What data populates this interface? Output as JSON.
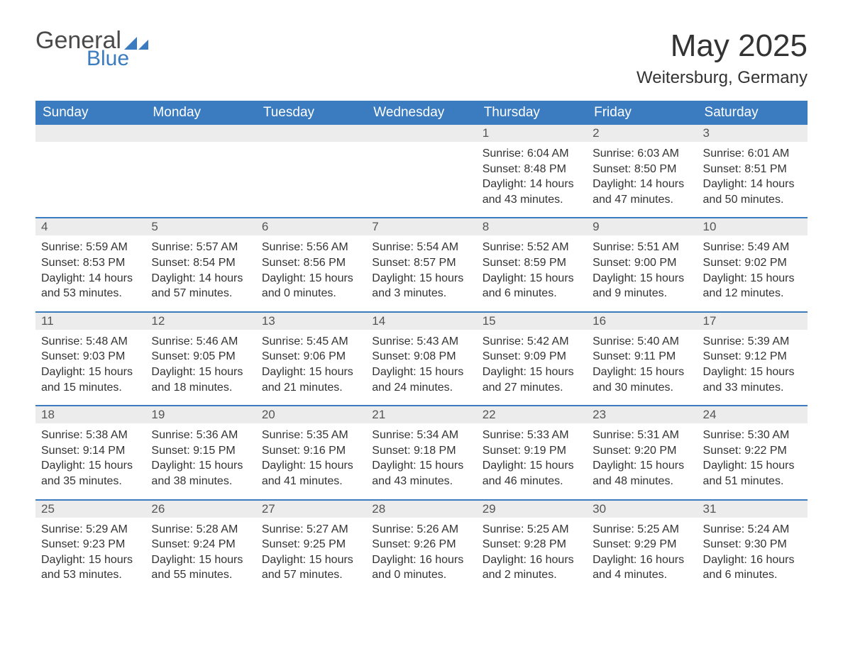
{
  "brand": {
    "word1": "General",
    "word2": "Blue"
  },
  "header": {
    "title": "May 2025",
    "location": "Weitersburg, Germany"
  },
  "colors": {
    "header_bg": "#3b7bbf",
    "header_text": "#ffffff",
    "daynum_bg": "#ececec",
    "row_divider": "#3b7bbf",
    "body_text": "#333333",
    "logo_gray": "#4a4a4a",
    "logo_blue": "#3b7bbf",
    "page_bg": "#ffffff"
  },
  "fonts": {
    "title_size_pt": 33,
    "location_size_pt": 18,
    "header_cell_size_pt": 14,
    "daynum_size_pt": 13,
    "content_size_pt": 12
  },
  "weekdays": [
    "Sunday",
    "Monday",
    "Tuesday",
    "Wednesday",
    "Thursday",
    "Friday",
    "Saturday"
  ],
  "weeks": [
    [
      null,
      null,
      null,
      null,
      {
        "n": "1",
        "sunrise": "6:04 AM",
        "sunset": "8:48 PM",
        "daylight": "14 hours and 43 minutes."
      },
      {
        "n": "2",
        "sunrise": "6:03 AM",
        "sunset": "8:50 PM",
        "daylight": "14 hours and 47 minutes."
      },
      {
        "n": "3",
        "sunrise": "6:01 AM",
        "sunset": "8:51 PM",
        "daylight": "14 hours and 50 minutes."
      }
    ],
    [
      {
        "n": "4",
        "sunrise": "5:59 AM",
        "sunset": "8:53 PM",
        "daylight": "14 hours and 53 minutes."
      },
      {
        "n": "5",
        "sunrise": "5:57 AM",
        "sunset": "8:54 PM",
        "daylight": "14 hours and 57 minutes."
      },
      {
        "n": "6",
        "sunrise": "5:56 AM",
        "sunset": "8:56 PM",
        "daylight": "15 hours and 0 minutes."
      },
      {
        "n": "7",
        "sunrise": "5:54 AM",
        "sunset": "8:57 PM",
        "daylight": "15 hours and 3 minutes."
      },
      {
        "n": "8",
        "sunrise": "5:52 AM",
        "sunset": "8:59 PM",
        "daylight": "15 hours and 6 minutes."
      },
      {
        "n": "9",
        "sunrise": "5:51 AM",
        "sunset": "9:00 PM",
        "daylight": "15 hours and 9 minutes."
      },
      {
        "n": "10",
        "sunrise": "5:49 AM",
        "sunset": "9:02 PM",
        "daylight": "15 hours and 12 minutes."
      }
    ],
    [
      {
        "n": "11",
        "sunrise": "5:48 AM",
        "sunset": "9:03 PM",
        "daylight": "15 hours and 15 minutes."
      },
      {
        "n": "12",
        "sunrise": "5:46 AM",
        "sunset": "9:05 PM",
        "daylight": "15 hours and 18 minutes."
      },
      {
        "n": "13",
        "sunrise": "5:45 AM",
        "sunset": "9:06 PM",
        "daylight": "15 hours and 21 minutes."
      },
      {
        "n": "14",
        "sunrise": "5:43 AM",
        "sunset": "9:08 PM",
        "daylight": "15 hours and 24 minutes."
      },
      {
        "n": "15",
        "sunrise": "5:42 AM",
        "sunset": "9:09 PM",
        "daylight": "15 hours and 27 minutes."
      },
      {
        "n": "16",
        "sunrise": "5:40 AM",
        "sunset": "9:11 PM",
        "daylight": "15 hours and 30 minutes."
      },
      {
        "n": "17",
        "sunrise": "5:39 AM",
        "sunset": "9:12 PM",
        "daylight": "15 hours and 33 minutes."
      }
    ],
    [
      {
        "n": "18",
        "sunrise": "5:38 AM",
        "sunset": "9:14 PM",
        "daylight": "15 hours and 35 minutes."
      },
      {
        "n": "19",
        "sunrise": "5:36 AM",
        "sunset": "9:15 PM",
        "daylight": "15 hours and 38 minutes."
      },
      {
        "n": "20",
        "sunrise": "5:35 AM",
        "sunset": "9:16 PM",
        "daylight": "15 hours and 41 minutes."
      },
      {
        "n": "21",
        "sunrise": "5:34 AM",
        "sunset": "9:18 PM",
        "daylight": "15 hours and 43 minutes."
      },
      {
        "n": "22",
        "sunrise": "5:33 AM",
        "sunset": "9:19 PM",
        "daylight": "15 hours and 46 minutes."
      },
      {
        "n": "23",
        "sunrise": "5:31 AM",
        "sunset": "9:20 PM",
        "daylight": "15 hours and 48 minutes."
      },
      {
        "n": "24",
        "sunrise": "5:30 AM",
        "sunset": "9:22 PM",
        "daylight": "15 hours and 51 minutes."
      }
    ],
    [
      {
        "n": "25",
        "sunrise": "5:29 AM",
        "sunset": "9:23 PM",
        "daylight": "15 hours and 53 minutes."
      },
      {
        "n": "26",
        "sunrise": "5:28 AM",
        "sunset": "9:24 PM",
        "daylight": "15 hours and 55 minutes."
      },
      {
        "n": "27",
        "sunrise": "5:27 AM",
        "sunset": "9:25 PM",
        "daylight": "15 hours and 57 minutes."
      },
      {
        "n": "28",
        "sunrise": "5:26 AM",
        "sunset": "9:26 PM",
        "daylight": "16 hours and 0 minutes."
      },
      {
        "n": "29",
        "sunrise": "5:25 AM",
        "sunset": "9:28 PM",
        "daylight": "16 hours and 2 minutes."
      },
      {
        "n": "30",
        "sunrise": "5:25 AM",
        "sunset": "9:29 PM",
        "daylight": "16 hours and 4 minutes."
      },
      {
        "n": "31",
        "sunrise": "5:24 AM",
        "sunset": "9:30 PM",
        "daylight": "16 hours and 6 minutes."
      }
    ]
  ],
  "labels": {
    "sunrise": "Sunrise:",
    "sunset": "Sunset:",
    "daylight": "Daylight:"
  }
}
